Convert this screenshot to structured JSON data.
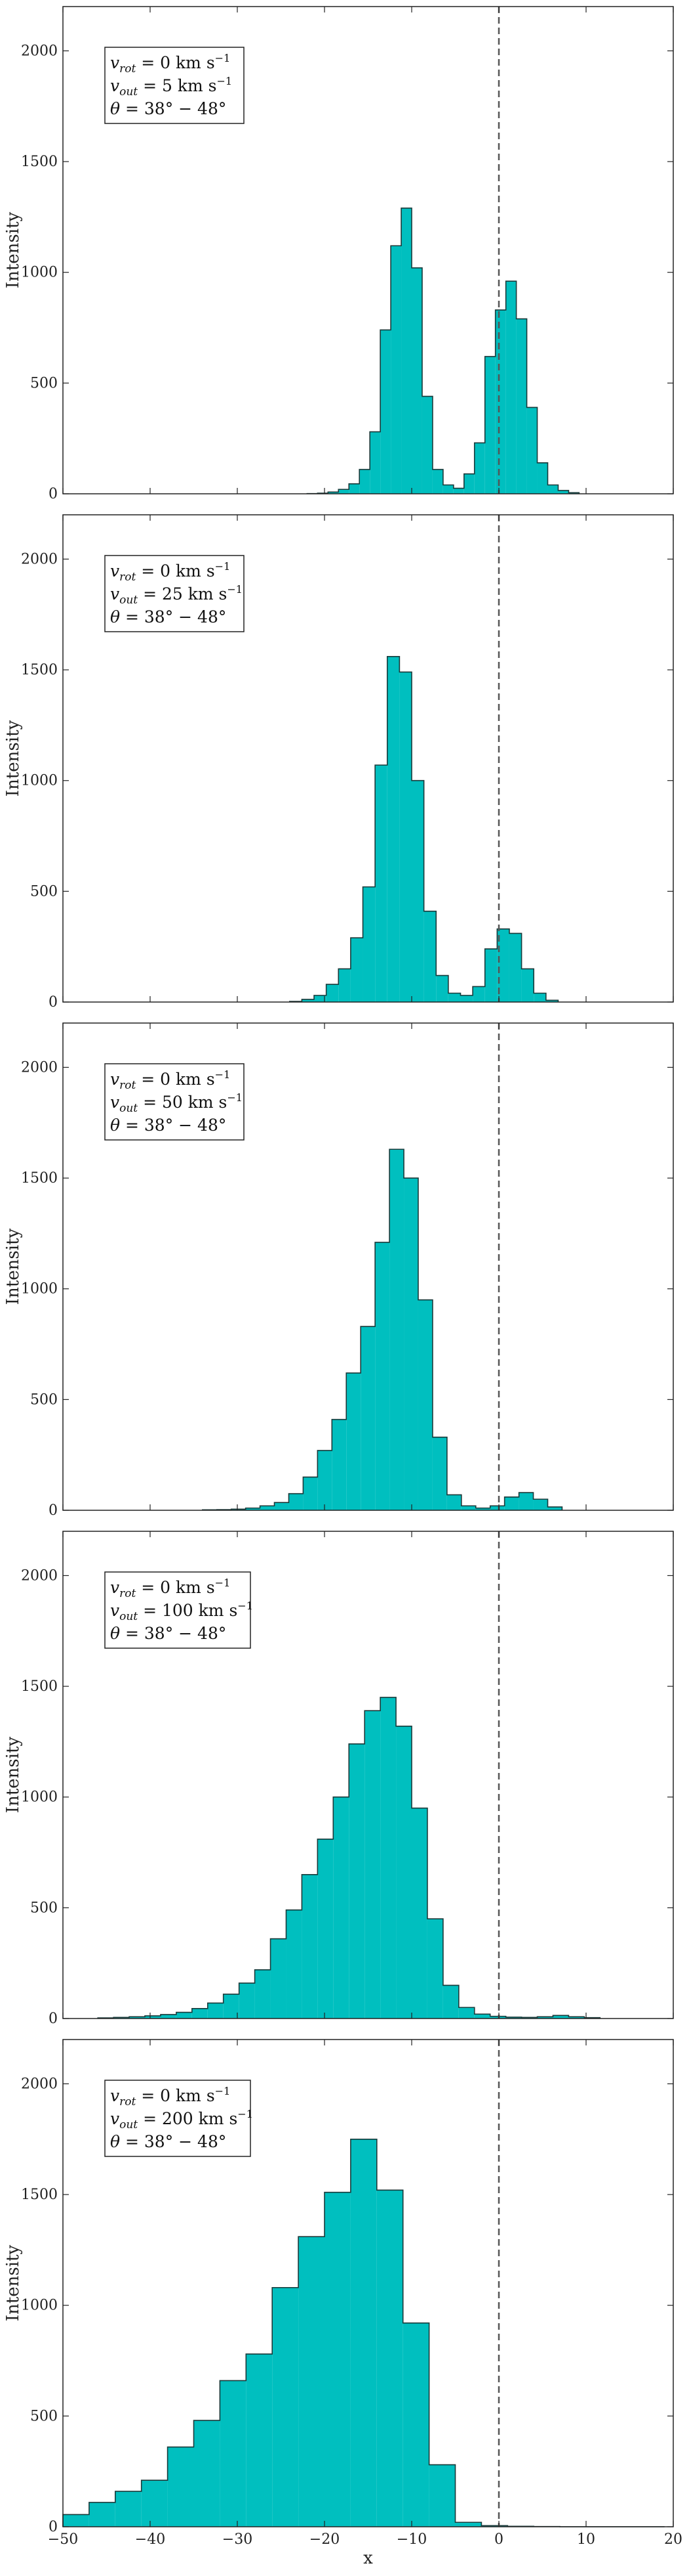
{
  "chart_data": [
    {
      "type": "bar",
      "histogram": true,
      "xlabel": "",
      "ylabel": "Intensity",
      "xlim": [
        -50,
        20
      ],
      "ylim": [
        0,
        2200
      ],
      "yticks": [
        0,
        500,
        1000,
        1500,
        2000
      ],
      "xticks": [],
      "reference_line_x": 0,
      "fill_color": "#00bfbf",
      "edge_color": "#1a3a3a",
      "annotation": {
        "line1": {
          "var": "v",
          "sub": "rot",
          "rest": " = 0 km s",
          "sup": "−1"
        },
        "line2": {
          "var": "v",
          "sub": "out",
          "rest": " = 5 km s",
          "sup": "−1"
        },
        "line3": {
          "var": "θ",
          "sub": "",
          "rest": " = 38° − 48°",
          "sup": ""
        }
      },
      "bins": {
        "start": -22,
        "width": 1.2
      },
      "values": [
        1,
        3,
        8,
        20,
        45,
        110,
        280,
        740,
        1120,
        1290,
        1020,
        440,
        110,
        40,
        25,
        90,
        230,
        620,
        830,
        960,
        790,
        390,
        140,
        40,
        15,
        5
      ]
    },
    {
      "type": "bar",
      "histogram": true,
      "xlabel": "",
      "ylabel": "Intensity",
      "xlim": [
        -50,
        20
      ],
      "ylim": [
        0,
        2200
      ],
      "yticks": [
        0,
        500,
        1000,
        1500,
        2000
      ],
      "xticks": [],
      "reference_line_x": 0,
      "fill_color": "#00bfbf",
      "edge_color": "#1a3a3a",
      "annotation": {
        "line1": {
          "var": "v",
          "sub": "rot",
          "rest": " = 0 km s",
          "sup": "−1"
        },
        "line2": {
          "var": "v",
          "sub": "out",
          "rest": " = 25 km s",
          "sup": "−1"
        },
        "line3": {
          "var": "θ",
          "sub": "",
          "rest": " = 38° − 48°",
          "sup": ""
        }
      },
      "bins": {
        "start": -24,
        "width": 1.4
      },
      "values": [
        3,
        12,
        30,
        80,
        150,
        290,
        520,
        1070,
        1560,
        1490,
        1000,
        410,
        120,
        40,
        30,
        70,
        240,
        330,
        310,
        150,
        40,
        8
      ]
    },
    {
      "type": "bar",
      "histogram": true,
      "xlabel": "",
      "ylabel": "Intensity",
      "xlim": [
        -50,
        20
      ],
      "ylim": [
        0,
        2200
      ],
      "yticks": [
        0,
        500,
        1000,
        1500,
        2000
      ],
      "xticks": [],
      "reference_line_x": 0,
      "fill_color": "#00bfbf",
      "edge_color": "#1a3a3a",
      "annotation": {
        "line1": {
          "var": "v",
          "sub": "rot",
          "rest": " = 0 km s",
          "sup": "−1"
        },
        "line2": {
          "var": "v",
          "sub": "out",
          "rest": " = 50 km s",
          "sup": "−1"
        },
        "line3": {
          "var": "θ",
          "sub": "",
          "rest": " = 38° − 48°",
          "sup": ""
        }
      },
      "bins": {
        "start": -34,
        "width": 1.65
      },
      "values": [
        2,
        3,
        5,
        10,
        20,
        35,
        75,
        150,
        270,
        410,
        620,
        830,
        1210,
        1630,
        1500,
        950,
        330,
        70,
        20,
        10,
        20,
        60,
        80,
        50,
        15
      ]
    },
    {
      "type": "bar",
      "histogram": true,
      "xlabel": "",
      "ylabel": "Intensity",
      "xlim": [
        -50,
        20
      ],
      "ylim": [
        0,
        2200
      ],
      "yticks": [
        0,
        500,
        1000,
        1500,
        2000
      ],
      "xticks": [],
      "reference_line_x": 0,
      "fill_color": "#00bfbf",
      "edge_color": "#1a3a3a",
      "annotation": {
        "line1": {
          "var": "v",
          "sub": "rot",
          "rest": " = 0 km s",
          "sup": "−1"
        },
        "line2": {
          "var": "v",
          "sub": "out",
          "rest": " = 100 km s",
          "sup": "−1"
        },
        "line3": {
          "var": "θ",
          "sub": "",
          "rest": " = 38° − 48°",
          "sup": ""
        }
      },
      "bins": {
        "start": -46,
        "width": 1.8
      },
      "values": [
        3,
        5,
        8,
        12,
        18,
        28,
        45,
        70,
        110,
        160,
        220,
        360,
        490,
        650,
        810,
        1000,
        1240,
        1390,
        1450,
        1320,
        950,
        450,
        150,
        50,
        20,
        10,
        6,
        5,
        8,
        14,
        8,
        4
      ]
    },
    {
      "type": "bar",
      "histogram": true,
      "xlabel": "x",
      "ylabel": "Intensity",
      "xlim": [
        -50,
        20
      ],
      "ylim": [
        0,
        2200
      ],
      "yticks": [
        0,
        500,
        1000,
        1500,
        2000
      ],
      "xticks": [
        -50,
        -40,
        -30,
        -20,
        -10,
        0,
        10,
        20
      ],
      "reference_line_x": 0,
      "fill_color": "#00bfbf",
      "edge_color": "#1a3a3a",
      "annotation": {
        "line1": {
          "var": "v",
          "sub": "rot",
          "rest": " = 0 km s",
          "sup": "−1"
        },
        "line2": {
          "var": "v",
          "sub": "out",
          "rest": " = 200 km s",
          "sup": "−1"
        },
        "line3": {
          "var": "θ",
          "sub": "",
          "rest": " = 38° − 48°",
          "sup": ""
        }
      },
      "bins": {
        "start": -50,
        "width": 3
      },
      "values": [
        55,
        110,
        160,
        210,
        360,
        480,
        660,
        780,
        1080,
        1310,
        1510,
        1750,
        1520,
        920,
        280,
        20,
        5,
        2,
        1,
        0,
        0,
        0,
        0
      ]
    }
  ]
}
